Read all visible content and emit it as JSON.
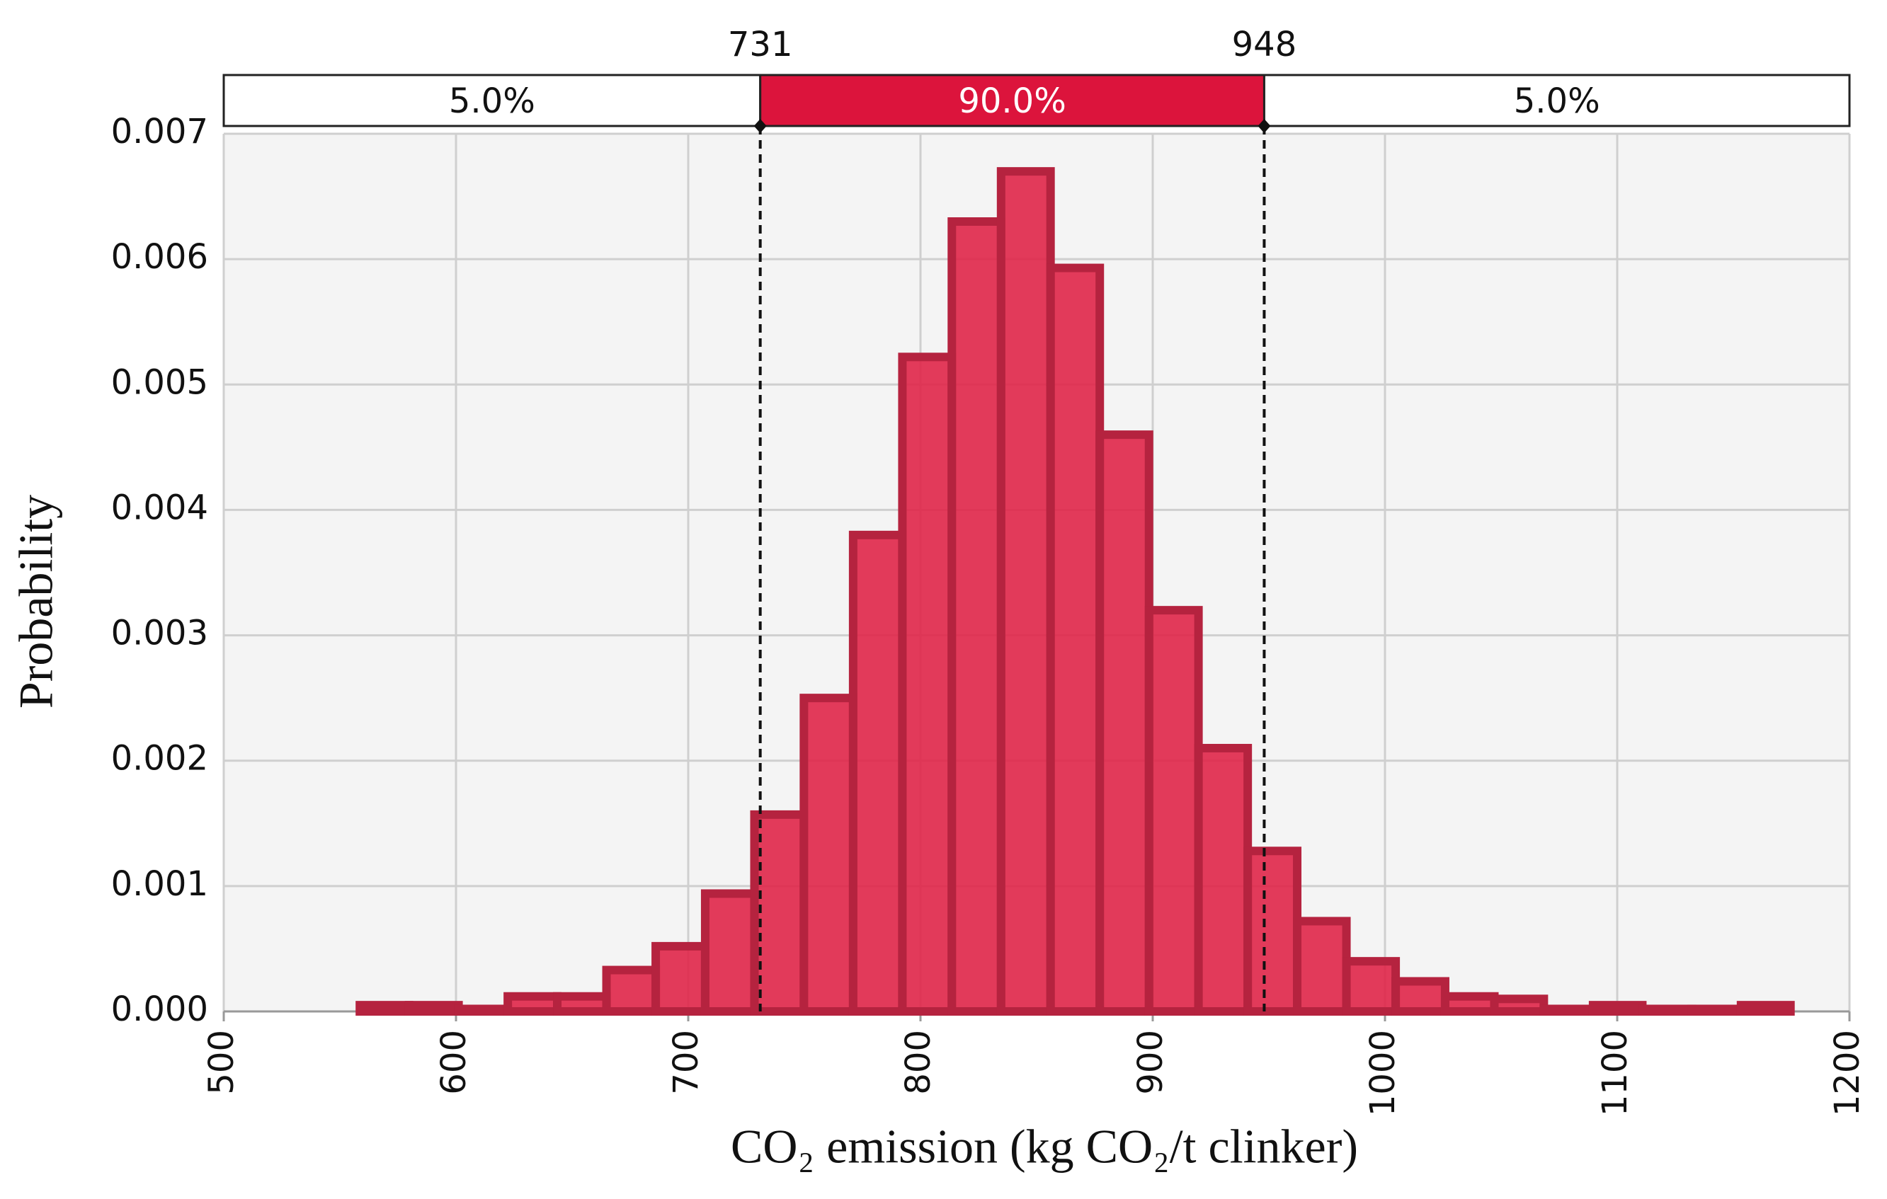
{
  "chart_data": {
    "type": "histogram",
    "x_label": "CO₂ emission (kg CO₂/t clinker)",
    "y_label": "Probability",
    "bins": [
      558.6,
      579.8,
      601.1,
      622.3,
      643.6,
      664.8,
      686.0,
      707.3,
      728.5,
      749.8,
      771.0,
      792.2,
      813.5,
      834.7,
      856.0,
      877.2,
      898.4,
      919.7,
      940.9,
      962.2,
      983.4,
      1004.6,
      1025.9,
      1047.1,
      1068.4,
      1089.6,
      1110.8,
      1132.1,
      1153.3,
      1174.6
    ],
    "values": [
      5e-05,
      5e-05,
      2e-05,
      0.00012,
      0.00012,
      0.00033,
      0.00052,
      0.00094,
      0.00157,
      0.0025,
      0.0038,
      0.00522,
      0.0063,
      0.0067,
      0.00593,
      0.0046,
      0.0032,
      0.0021,
      0.00128,
      0.00072,
      0.0004,
      0.00024,
      0.00012,
      0.0001,
      2e-05,
      5e-05,
      2e-05,
      2e-05,
      5e-05
    ],
    "color": "#e0294c",
    "edge_color": "#b5233f",
    "xlim": [
      500,
      1200
    ],
    "xticks": [
      500,
      600,
      700,
      800,
      900,
      1000,
      1100,
      1200
    ],
    "ylim": [
      0,
      0.007
    ],
    "yticks": [
      {
        "value": 0,
        "label": "0.000"
      },
      {
        "value": 0.001,
        "label": "0.001"
      },
      {
        "value": 0.002,
        "label": "0.002"
      },
      {
        "value": 0.003,
        "label": "0.003"
      },
      {
        "value": 0.004,
        "label": "0.004"
      },
      {
        "value": 0.005,
        "label": "0.005"
      },
      {
        "value": 0.006,
        "label": "0.006"
      },
      {
        "value": 0.007,
        "label": "0.007"
      }
    ],
    "grid": true,
    "interval": {
      "lower": 731,
      "upper": 948,
      "left_label": "5.0%",
      "middle_label": "90.0%",
      "right_label": "5.0%",
      "color": "#dc143c"
    }
  }
}
